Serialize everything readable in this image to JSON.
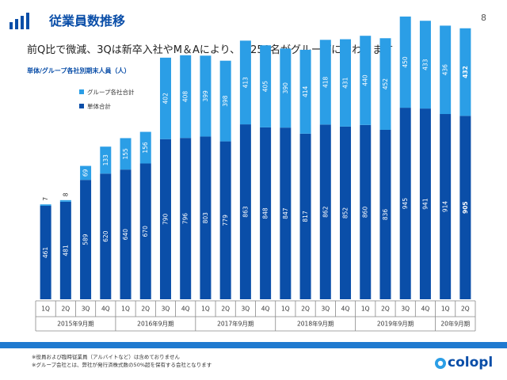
{
  "header": {
    "title": "従業員数推移",
    "page_number": "8",
    "icon": "bar-chart-icon"
  },
  "subtitle": "前Q比で微減、3Qは新卒入社やM＆Aにより、約250名がグループに加わります",
  "chart_caption": "単体/グループ各社別期末人員（人）",
  "colors": {
    "group": "#2b9ee6",
    "standalone": "#0a4ea8",
    "brand": "#0a4ea8",
    "bar_bottom": "#1f7ad0"
  },
  "legend": {
    "group_label": "グループ各社合計",
    "standalone_label": "単体合計"
  },
  "chart_data": {
    "type": "bar",
    "stacked": true,
    "categories": [
      "1Q",
      "2Q",
      "3Q",
      "4Q",
      "1Q",
      "2Q",
      "3Q",
      "4Q",
      "1Q",
      "2Q",
      "3Q",
      "4Q",
      "1Q",
      "2Q",
      "3Q",
      "4Q",
      "1Q",
      "2Q",
      "3Q",
      "4Q",
      "1Q",
      "2Q"
    ],
    "series": [
      {
        "name": "単体合計",
        "values": [
          461,
          481,
          589,
          620,
          640,
          670,
          790,
          796,
          803,
          779,
          863,
          848,
          847,
          817,
          862,
          852,
          860,
          836,
          945,
          941,
          914,
          905
        ]
      },
      {
        "name": "グループ各社合計",
        "values": [
          7,
          8,
          69,
          133,
          155,
          156,
          402,
          408,
          399,
          398,
          413,
          405,
          390,
          414,
          418,
          431,
          440,
          452,
          450,
          433,
          436,
          432
        ]
      }
    ],
    "fiscal_years": [
      {
        "label": "2015年9月期",
        "count": 4
      },
      {
        "label": "2016年9月期",
        "count": 4
      },
      {
        "label": "2017年9月期",
        "count": 4
      },
      {
        "label": "2018年9月期",
        "count": 4
      },
      {
        "label": "2019年9月期",
        "count": 4
      },
      {
        "label": "20年9月期",
        "count": 2
      }
    ],
    "bold_last": true,
    "ylim": [
      0,
      1450
    ],
    "legend_position": "top-left",
    "grid": false
  },
  "footnotes": [
    "※役員および臨時従業員（アルバイトなど）は含めておりません",
    "※グループ会社とは、弊社が発行済株式数の50%超を保有する会社となります"
  ],
  "logo": {
    "text": "colopl"
  }
}
